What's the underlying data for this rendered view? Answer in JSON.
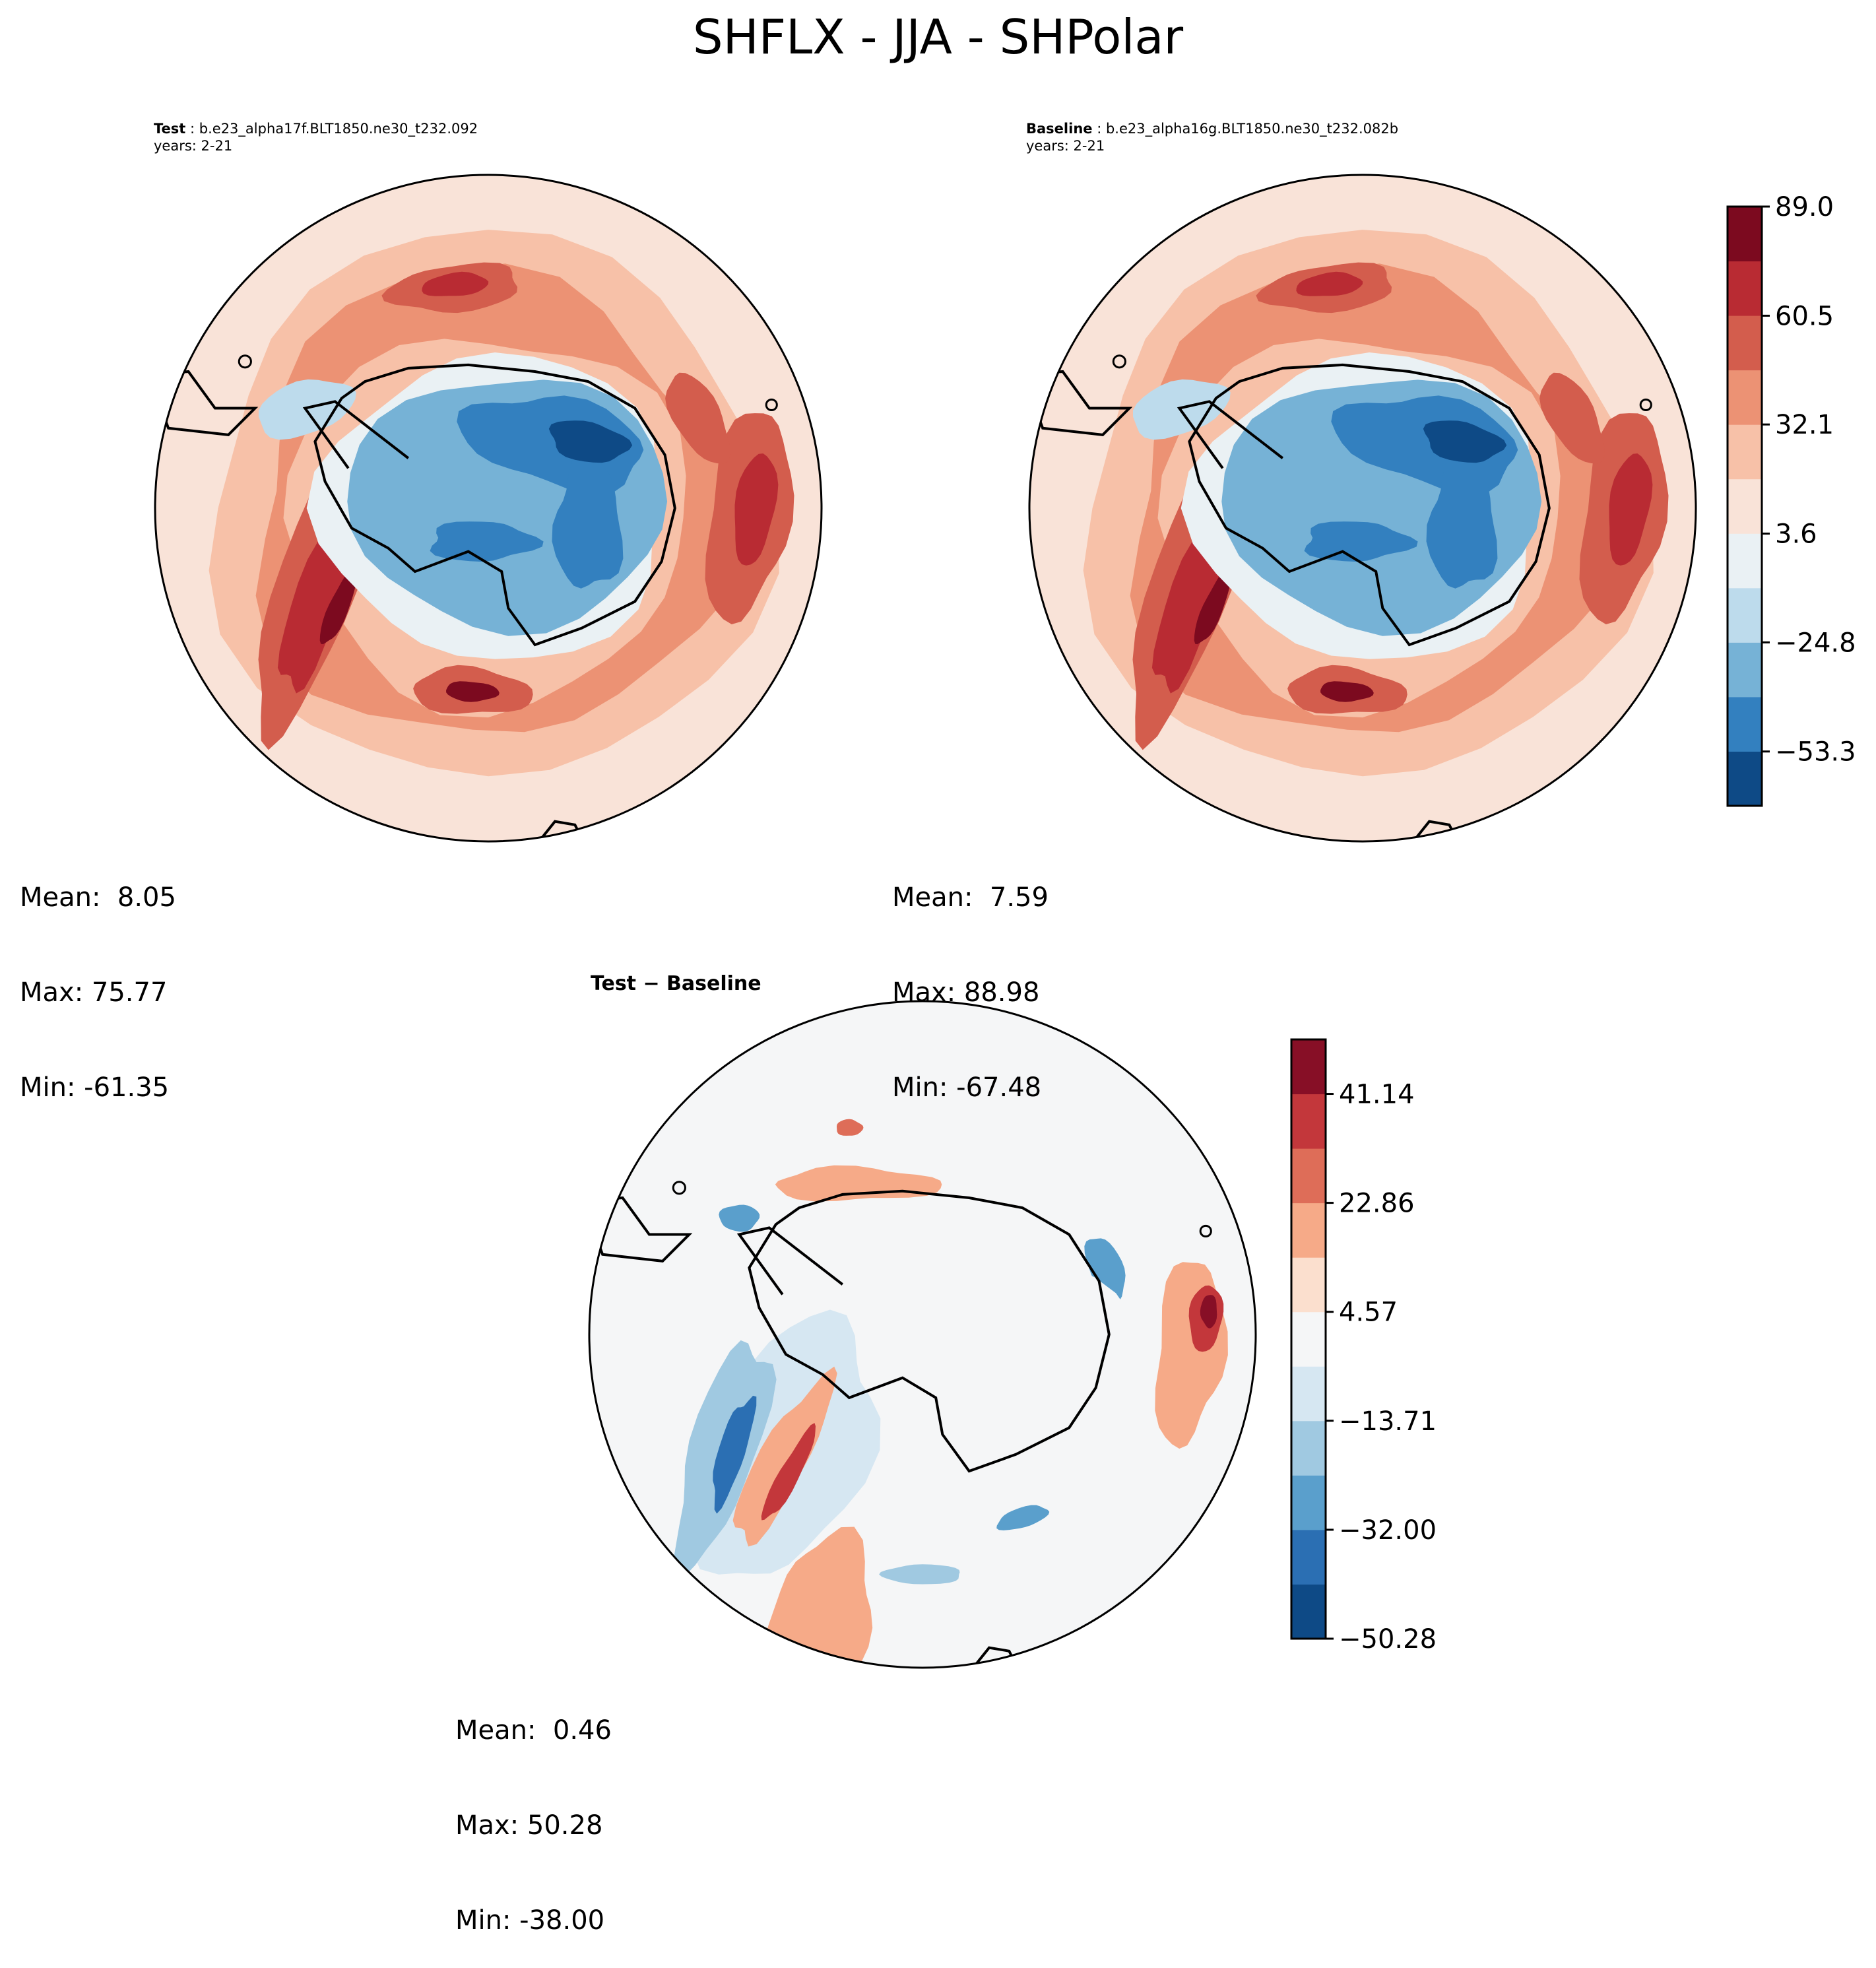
{
  "figure": {
    "title": "SHFLX - JJA - SHPolar"
  },
  "colors": {
    "border": "#000000",
    "scale": [
      "#0e4a86",
      "#3380bf",
      "#76b2d6",
      "#bddbec",
      "#eaf1f4",
      "#f9e3d8",
      "#f7c1a8",
      "#ec9274",
      "#d35d4d",
      "#b92b33",
      "#7c0a1f"
    ],
    "diff_scale": [
      "#0e4a86",
      "#2b6fb3",
      "#5a9fcc",
      "#a0c9e1",
      "#d6e7f2",
      "#f5f6f7",
      "#fbdfce",
      "#f6aa88",
      "#de6d58",
      "#c3373b",
      "#870f26"
    ]
  },
  "panels": {
    "test": {
      "label": "Test",
      "name": "b.e23_alpha17f.BLT1850.ne30_t232.092",
      "years": "years: 2-21",
      "mean": "Mean:  8.05",
      "max": "Max: 75.77",
      "min": "Min: -61.35"
    },
    "baseline": {
      "label": "Baseline",
      "name": "b.e23_alpha16g.BLT1850.ne30_t232.082b",
      "years": "years: 2-21",
      "mean": "Mean:  7.59",
      "max": "Max: 88.98",
      "min": "Min: -67.48"
    },
    "diff": {
      "title": "Test − Baseline",
      "mean": "Mean:  0.46",
      "max": "Max: 50.28",
      "min": "Min: -38.00"
    }
  },
  "chart_data": [
    {
      "type": "heatmap",
      "title": "Test",
      "projection": "south-polar-stereographic",
      "levels": [
        -67.48,
        -53.3,
        -39.05,
        -24.8,
        -10.6,
        3.6,
        17.85,
        32.1,
        46.3,
        60.5,
        74.75,
        89.0
      ],
      "stats": {
        "mean": 8.05,
        "max": 75.77,
        "min": -61.35
      }
    },
    {
      "type": "heatmap",
      "title": "Baseline",
      "projection": "south-polar-stereographic",
      "levels": [
        -67.48,
        -53.3,
        -39.05,
        -24.8,
        -10.6,
        3.6,
        17.85,
        32.1,
        46.3,
        60.5,
        74.75,
        89.0
      ],
      "colorbar_ticks": [
        "89.0",
        "60.5",
        "32.1",
        "3.6",
        "−24.8",
        "−53.3"
      ],
      "colorbar_tick_values": [
        89.0,
        60.5,
        32.1,
        3.6,
        -24.8,
        -53.3
      ],
      "colorbar_range": [
        -67.48,
        89.0
      ],
      "stats": {
        "mean": 7.59,
        "max": 88.98,
        "min": -67.48
      }
    },
    {
      "type": "heatmap",
      "title": "Test − Baseline",
      "projection": "south-polar-stereographic",
      "levels": [
        -50.28,
        -41.14,
        -32.0,
        -22.86,
        -13.71,
        -4.57,
        4.57,
        13.71,
        22.86,
        32.0,
        41.14,
        50.28
      ],
      "colorbar_ticks": [
        "41.14",
        "22.86",
        "4.57",
        "−13.71",
        "−32.00",
        "−50.28"
      ],
      "colorbar_tick_values": [
        41.14,
        22.86,
        4.57,
        -13.71,
        -32.0,
        -50.28
      ],
      "colorbar_range": [
        -50.28,
        50.28
      ],
      "stats": {
        "mean": 0.46,
        "max": 50.28,
        "min": -38.0
      }
    }
  ]
}
